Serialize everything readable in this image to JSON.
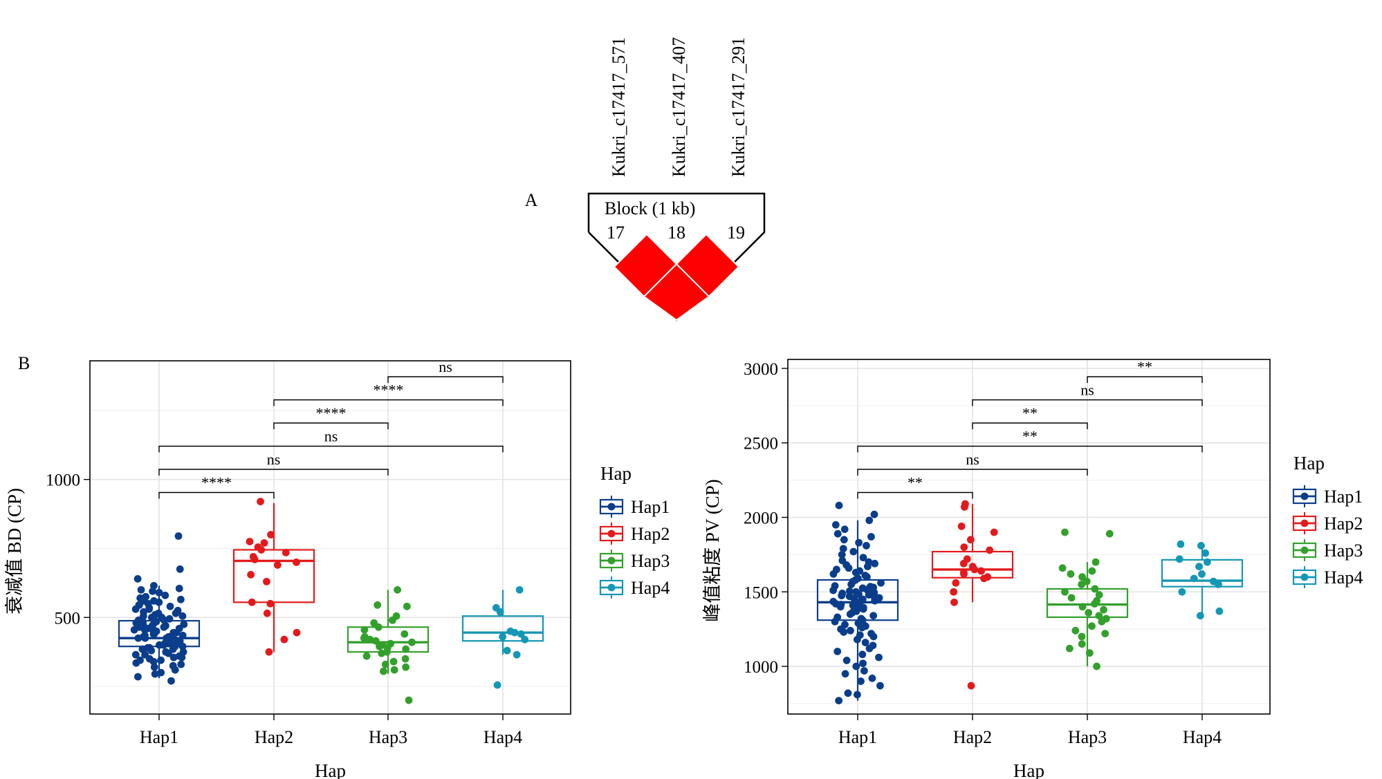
{
  "panel_labels": {
    "a": "A",
    "b": "B"
  },
  "ld_block": {
    "snps": [
      "Kukri_c17417_571",
      "Kukri_c17417_407",
      "Kukri_c17417_291"
    ],
    "block_label": "Block (1 kb)",
    "marker_numbers": [
      "17",
      "18",
      "19"
    ],
    "cell_color": "#ff0000",
    "outline_color": "#000000"
  },
  "colors": {
    "Hap1": "#0a3d8a",
    "Hap2": "#e31a1c",
    "Hap3": "#33a02c",
    "Hap4": "#1497b5"
  },
  "chart_data": [
    {
      "type": "box",
      "xlabel": "Hap",
      "ylabel": "衰减值 BD (CP)",
      "categories": [
        "Hap1",
        "Hap2",
        "Hap3",
        "Hap4"
      ],
      "y_ticks": [
        500,
        1000
      ],
      "ylim": [
        150,
        1430
      ],
      "grid": true,
      "boxes": [
        {
          "name": "Hap1",
          "q1": 395,
          "median": 425,
          "q3": 488,
          "whisker_low": 280,
          "whisker_high": 615
        },
        {
          "name": "Hap2",
          "q1": 555,
          "median": 705,
          "q3": 745,
          "whisker_low": 375,
          "whisker_high": 915
        },
        {
          "name": "Hap3",
          "q1": 375,
          "median": 410,
          "q3": 465,
          "whisker_low": 295,
          "whisker_high": 600
        },
        {
          "name": "Hap4",
          "q1": 415,
          "median": 445,
          "q3": 505,
          "whisker_low": 365,
          "whisker_high": 600
        }
      ],
      "points": {
        "Hap1": [
          795,
          675,
          640,
          615,
          605,
          600,
          595,
          590,
          580,
          575,
          570,
          565,
          560,
          560,
          555,
          550,
          545,
          540,
          535,
          530,
          530,
          525,
          520,
          515,
          510,
          505,
          500,
          500,
          495,
          490,
          490,
          485,
          480,
          480,
          475,
          470,
          470,
          465,
          460,
          460,
          455,
          450,
          450,
          445,
          440,
          440,
          435,
          430,
          430,
          425,
          425,
          420,
          420,
          415,
          410,
          410,
          405,
          400,
          400,
          395,
          390,
          390,
          385,
          380,
          375,
          370,
          365,
          360,
          355,
          350,
          345,
          340,
          335,
          330,
          320,
          310,
          300,
          295,
          285,
          270,
          445,
          455,
          435,
          465,
          415,
          425,
          405,
          395,
          475,
          385,
          345,
          375,
          365,
          505,
          515,
          325,
          355,
          545,
          485,
          455
        ],
        "Hap2": [
          920,
          800,
          775,
          770,
          755,
          745,
          735,
          720,
          710,
          700,
          690,
          655,
          630,
          555,
          550,
          515,
          445,
          420,
          375
        ],
        "Hap3": [
          600,
          545,
          540,
          505,
          490,
          480,
          465,
          455,
          440,
          430,
          425,
          420,
          415,
          410,
          405,
          400,
          395,
          390,
          385,
          375,
          370,
          360,
          350,
          340,
          330,
          320,
          310,
          305,
          200
        ],
        "Hap4": [
          600,
          535,
          520,
          450,
          445,
          440,
          430,
          420,
          380,
          365,
          255
        ]
      },
      "comparisons": [
        {
          "from": "Hap1",
          "to": "Hap2",
          "label": "****",
          "level": 0
        },
        {
          "from": "Hap1",
          "to": "Hap3",
          "label": "ns",
          "level": 1
        },
        {
          "from": "Hap1",
          "to": "Hap4",
          "label": "ns",
          "level": 2
        },
        {
          "from": "Hap2",
          "to": "Hap3",
          "label": "****",
          "level": 3
        },
        {
          "from": "Hap2",
          "to": "Hap4",
          "label": "****",
          "level": 4
        },
        {
          "from": "Hap3",
          "to": "Hap4",
          "label": "ns",
          "level": 5
        }
      ],
      "legend": {
        "title": "Hap",
        "placement": "right",
        "entries": [
          "Hap1",
          "Hap2",
          "Hap3",
          "Hap4"
        ]
      }
    },
    {
      "type": "box",
      "xlabel": "Hap",
      "ylabel": "峰值粘度 PV (CP)",
      "categories": [
        "Hap1",
        "Hap2",
        "Hap3",
        "Hap4"
      ],
      "y_ticks": [
        1000,
        1500,
        2000,
        2500,
        3000
      ],
      "ylim": [
        680,
        3060
      ],
      "grid": true,
      "boxes": [
        {
          "name": "Hap1",
          "q1": 1310,
          "median": 1430,
          "q3": 1580,
          "whisker_low": 770,
          "whisker_high": 1980
        },
        {
          "name": "Hap2",
          "q1": 1595,
          "median": 1650,
          "q3": 1770,
          "whisker_low": 1430,
          "whisker_high": 2090
        },
        {
          "name": "Hap3",
          "q1": 1330,
          "median": 1415,
          "q3": 1520,
          "whisker_low": 1000,
          "whisker_high": 1700
        },
        {
          "name": "Hap4",
          "q1": 1535,
          "median": 1575,
          "q3": 1715,
          "whisker_low": 1340,
          "whisker_high": 1820
        }
      ],
      "points": {
        "Hap1": [
          2080,
          2020,
          1980,
          1950,
          1920,
          1890,
          1870,
          1850,
          1830,
          1810,
          1790,
          1770,
          1750,
          1730,
          1710,
          1700,
          1690,
          1680,
          1670,
          1660,
          1650,
          1640,
          1630,
          1620,
          1610,
          1600,
          1590,
          1580,
          1570,
          1560,
          1550,
          1540,
          1530,
          1520,
          1510,
          1500,
          1490,
          1480,
          1470,
          1460,
          1450,
          1440,
          1430,
          1420,
          1410,
          1400,
          1390,
          1380,
          1370,
          1360,
          1350,
          1340,
          1330,
          1320,
          1310,
          1300,
          1290,
          1280,
          1270,
          1260,
          1250,
          1240,
          1230,
          1220,
          1210,
          1200,
          1180,
          1160,
          1140,
          1120,
          1100,
          1080,
          1060,
          1040,
          1020,
          1000,
          970,
          950,
          920,
          900,
          870,
          820,
          810,
          770,
          1455,
          1465,
          1475,
          1445,
          1435,
          1425,
          1415,
          1405,
          1395,
          1385,
          1485,
          1495,
          1505,
          1515,
          1525,
          1535
        ],
        "Hap2": [
          2090,
          2070,
          1940,
          1900,
          1850,
          1800,
          1780,
          1720,
          1690,
          1670,
          1650,
          1640,
          1630,
          1620,
          1600,
          1590,
          1560,
          1500,
          1430,
          870
        ],
        "Hap3": [
          1900,
          1890,
          1700,
          1660,
          1640,
          1620,
          1600,
          1570,
          1550,
          1520,
          1500,
          1480,
          1460,
          1440,
          1420,
          1400,
          1380,
          1360,
          1340,
          1320,
          1300,
          1270,
          1240,
          1220,
          1200,
          1150,
          1120,
          1090,
          1000
        ],
        "Hap4": [
          1820,
          1810,
          1760,
          1720,
          1700,
          1670,
          1620,
          1590,
          1570,
          1550,
          1500,
          1370,
          1340
        ]
      },
      "comparisons": [
        {
          "from": "Hap1",
          "to": "Hap2",
          "label": "**",
          "level": 0
        },
        {
          "from": "Hap1",
          "to": "Hap3",
          "label": "ns",
          "level": 1
        },
        {
          "from": "Hap1",
          "to": "Hap4",
          "label": "**",
          "level": 2
        },
        {
          "from": "Hap2",
          "to": "Hap3",
          "label": "**",
          "level": 3
        },
        {
          "from": "Hap2",
          "to": "Hap4",
          "label": "ns",
          "level": 4
        },
        {
          "from": "Hap3",
          "to": "Hap4",
          "label": "**",
          "level": 5
        }
      ],
      "legend": {
        "title": "Hap",
        "placement": "right",
        "entries": [
          "Hap1",
          "Hap2",
          "Hap3",
          "Hap4"
        ]
      }
    }
  ]
}
